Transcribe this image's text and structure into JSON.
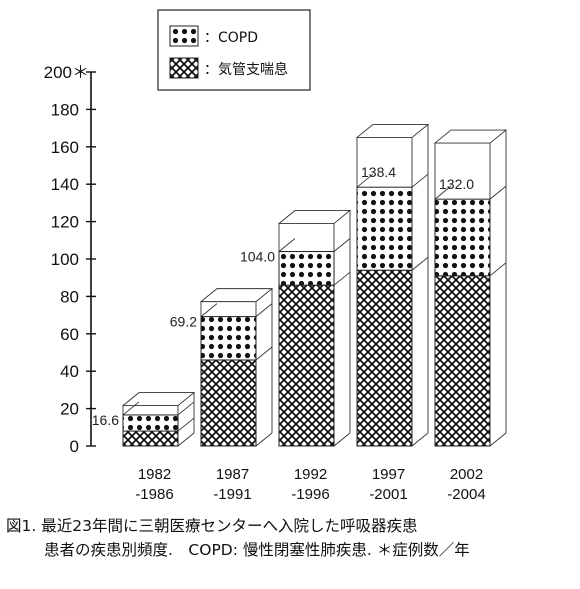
{
  "chart_data": {
    "type": "bar",
    "stacked": true,
    "categories": [
      "1982\n-1986",
      "1987\n-1991",
      "1992\n-1996",
      "1997\n-2001",
      "2002\n-2004"
    ],
    "category_lines": [
      [
        "1982",
        "-1986"
      ],
      [
        "1987",
        "-1991"
      ],
      [
        "1992",
        "-1996"
      ],
      [
        "1997",
        "-2001"
      ],
      [
        "2002",
        "-2004"
      ]
    ],
    "series": [
      {
        "name": "：気管支喘息",
        "values": [
          8,
          46,
          86,
          94,
          91
        ],
        "pattern": "crosshatch"
      },
      {
        "name": "：COPD",
        "values": [
          8.6,
          23.2,
          18.0,
          44.4,
          41.0
        ],
        "pattern": "dots"
      }
    ],
    "totals": [
      16.6,
      69.2,
      104.0,
      138.4,
      132.0
    ],
    "total_labels": [
      "16.6",
      "69.2",
      "104.0",
      "138.4",
      "132.0"
    ],
    "ylim": [
      0,
      200
    ],
    "yticks": [
      0,
      20,
      40,
      60,
      80,
      100,
      120,
      140,
      160,
      180,
      200
    ],
    "ytick_labels": [
      "0",
      "20",
      "40",
      "60",
      "80",
      "100",
      "120",
      "140",
      "160",
      "180",
      "200＊"
    ],
    "legend_placement": "top-center",
    "three_d": true,
    "grid": false
  },
  "caption": {
    "line1": "図1. 最近23年間に三朝医療センターへ入院した呼吸器疾患",
    "line2": "患者の疾患別頻度.　COPD: 慢性閉塞性肺疾患. ＊症例数／年"
  }
}
